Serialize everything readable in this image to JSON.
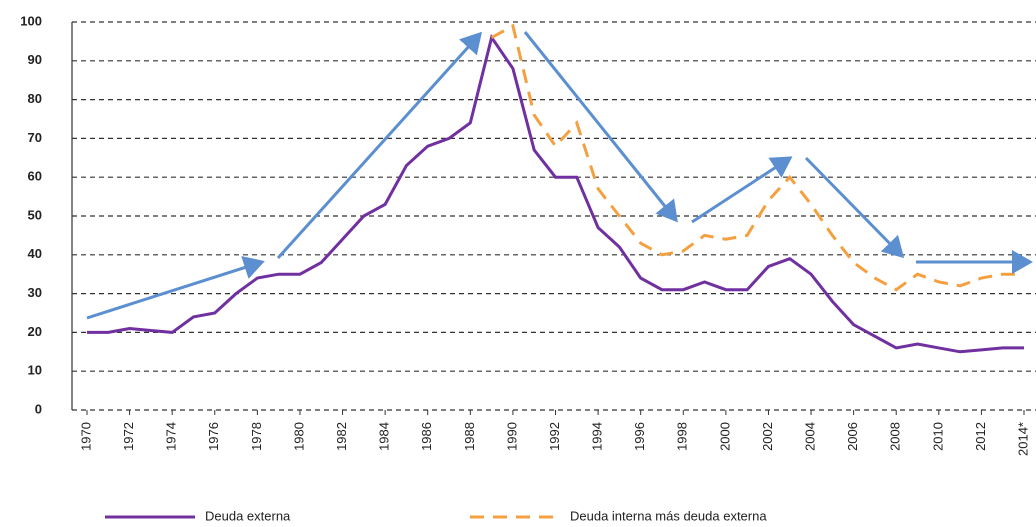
{
  "chart_data": {
    "type": "line",
    "x": [
      1970,
      1971,
      1972,
      1973,
      1974,
      1975,
      1976,
      1977,
      1978,
      1979,
      1980,
      1981,
      1982,
      1983,
      1984,
      1985,
      1986,
      1987,
      1988,
      1989,
      1990,
      1991,
      1992,
      1993,
      1994,
      1995,
      1996,
      1997,
      1998,
      1999,
      2000,
      2001,
      2002,
      2003,
      2004,
      2005,
      2006,
      2007,
      2008,
      2009,
      2010,
      2011,
      2012,
      2013,
      2014
    ],
    "series": [
      {
        "name": "Deuda externa",
        "color": "#7030a0",
        "linestyle": "solid",
        "values": [
          20,
          20,
          21,
          20.5,
          20,
          24,
          25,
          30,
          34,
          35,
          35,
          38,
          44,
          50,
          53,
          63,
          68,
          70,
          74,
          96,
          88,
          67,
          60,
          60,
          47,
          42,
          34,
          31,
          31,
          33,
          31,
          31,
          37,
          39,
          35,
          28,
          22,
          19,
          16,
          17,
          16,
          15,
          15.5,
          16,
          16
        ]
      },
      {
        "name": "Deuda interna más deuda externa",
        "color": "#f5a040",
        "linestyle": "dashed",
        "values": [
          null,
          null,
          null,
          null,
          null,
          null,
          null,
          null,
          null,
          null,
          null,
          null,
          null,
          null,
          null,
          null,
          null,
          null,
          null,
          96,
          99,
          76,
          68,
          74,
          57,
          50,
          43,
          40,
          41,
          45,
          44,
          45,
          54,
          60,
          53,
          45,
          38,
          34,
          31,
          35,
          33,
          32,
          34,
          35,
          35
        ]
      }
    ],
    "xlim": [
      1970,
      2014
    ],
    "xticks": [
      1970,
      1972,
      1974,
      1976,
      1978,
      1980,
      1982,
      1984,
      1986,
      1988,
      1990,
      1992,
      1994,
      1996,
      1998,
      2000,
      2002,
      2004,
      2006,
      2008,
      2010,
      2012,
      {
        "value": 2014,
        "label": "2014*"
      }
    ],
    "ylim": [
      0,
      100
    ],
    "yticks": [
      0,
      10,
      20,
      30,
      40,
      50,
      60,
      70,
      80,
      90,
      100
    ],
    "grid": true,
    "legend": "bottom"
  }
}
